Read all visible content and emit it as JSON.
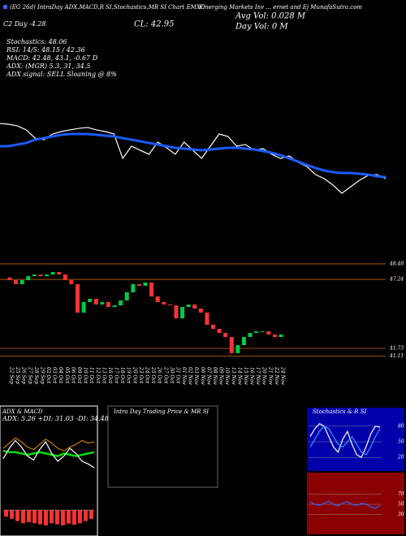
{
  "header": {
    "title_left": "(EG 26d) IntraDay ADX,MACD,R SI,Stochastics,MR SI Chart EMXC",
    "title_right": "Emerging Markets Inv ... ernet and Ej MunafaSutra.com",
    "close": "CL: 42.95",
    "avg_vol": "Avg Vol: 0.028  M",
    "day_vol": "Day Vol: 0  M",
    "day_change": "C2 Day -4.28"
  },
  "info": [
    "Stochastics: 48.06",
    "RSI: 14/5: 48.15 / 42.36",
    "MACD: 42.48, 43.1, -0.67 D",
    "ADX: (MGR) 5.3, 31, 34.5",
    "ADX  signal: SELL Sloaning @ 8%"
  ],
  "chart_data": [
    {
      "type": "line",
      "ylim": [
        41,
        48.5
      ],
      "series": [
        {
          "color": "#ffffff",
          "values": [
            48.33,
            48.25,
            48.08,
            47.67,
            46.83,
            46.67,
            47.25,
            47.5,
            47.67,
            47.83,
            47.92,
            47.67,
            47.5,
            47.25,
            44.75,
            46,
            45.58,
            45.17,
            46.42,
            45.83,
            45.17,
            46.42,
            45.58,
            44.75,
            46,
            47.25,
            47,
            46,
            46.17,
            45.58,
            45.75,
            45.17,
            44.75,
            45,
            44.33,
            43.92,
            43.08,
            42.67,
            42,
            41.17,
            41.83,
            42.5,
            43,
            43.08,
            42.67
          ]
        },
        {
          "color": "#1a5cff",
          "values": [
            46,
            46,
            46.17,
            46.33,
            46.67,
            46.83,
            47,
            47.17,
            47.25,
            47.25,
            47.25,
            47.17,
            47.08,
            47,
            46.83,
            46.67,
            46.5,
            46.33,
            46.17,
            46,
            45.83,
            45.75,
            45.67,
            45.58,
            45.67,
            45.75,
            45.83,
            45.83,
            45.75,
            45.67,
            45.5,
            45.33,
            45.08,
            44.75,
            44.42,
            44.08,
            43.75,
            43.5,
            43.33,
            43.25,
            43.25,
            43.17,
            43.08,
            42.92,
            42.83
          ]
        }
      ]
    },
    {
      "type": "candlestick",
      "up_color": "#00cc44",
      "down_color": "#ff3333",
      "grid": true,
      "grid_color": "#cc6600",
      "ylim": [
        40.5,
        48.8
      ],
      "yticks": [
        48.48,
        47.24,
        41.73,
        41.11
      ],
      "categories": [
        "22 Sep",
        "25 Sep",
        "26 Sep",
        "27 Sep",
        "28 Sep",
        "29 Sep",
        "02 Oct",
        "03 Oct",
        "04 Oct",
        "05 Oct",
        "06 Oct",
        "09 Oct",
        "10 Oct",
        "11 Oct",
        "12 Oct",
        "13 Oct",
        "16 Oct",
        "17 Oct",
        "18 Oct",
        "19 Oct",
        "20 Oct",
        "23 Oct",
        "24 Oct",
        "25 Oct",
        "26 Oct",
        "27 Oct",
        "30 Oct",
        "31 Oct",
        "01 Nov",
        "02 Nov",
        "03 Nov",
        "06 Nov",
        "07 Nov",
        "08 Nov",
        "09 Nov",
        "10 Nov",
        "13 Nov",
        "14 Nov",
        "15 Nov",
        "16 Nov",
        "17 Nov",
        "20 Nov",
        "21 Nov",
        "22 Nov",
        "24 Nov"
      ],
      "open": [
        47.4,
        47.18,
        46.86,
        47.18,
        47.5,
        47.63,
        47.5,
        47.63,
        47.83,
        47.63,
        47.18,
        46.86,
        44.59,
        45.43,
        45.69,
        45.24,
        45.43,
        45.04,
        45.17,
        45.56,
        46.21,
        46.86,
        46.73,
        46.99,
        45.88,
        45.43,
        45.24,
        45.17,
        44.13,
        45.04,
        45.24,
        44.91,
        44.59,
        43.62,
        43.29,
        42.97,
        42.64,
        41.35,
        41.99,
        42.64,
        42.97,
        43.1,
        43.1,
        42.84,
        42.64
      ],
      "close": [
        47.18,
        46.86,
        47.18,
        47.5,
        47.63,
        47.5,
        47.63,
        47.83,
        47.63,
        47.18,
        46.86,
        44.59,
        45.43,
        45.69,
        45.24,
        45.43,
        45.04,
        45.17,
        45.56,
        46.21,
        46.86,
        46.73,
        46.99,
        45.88,
        45.43,
        45.24,
        45.17,
        44.13,
        45.04,
        45.24,
        44.91,
        44.59,
        43.62,
        43.29,
        42.97,
        42.64,
        41.35,
        41.99,
        42.64,
        42.97,
        43.1,
        43.1,
        42.84,
        42.64,
        42.84
      ]
    },
    {
      "type": "line",
      "title": "ADX  & MACD",
      "subtitle": "ADX: 5.26  +DI: 31.03 -DI: 34.48",
      "ylim": [
        0,
        50
      ],
      "series": [
        {
          "color": "#00dd00",
          "values": [
            28,
            27,
            27,
            26,
            25,
            26,
            27,
            26,
            25,
            24,
            26,
            25,
            24,
            25,
            26,
            27
          ]
        },
        {
          "color": "#cc7a00",
          "values": [
            30,
            34,
            38,
            35,
            31,
            29,
            33,
            37,
            34,
            30,
            28,
            31,
            33,
            36,
            34,
            35
          ]
        },
        {
          "color": "#ffffff",
          "values": [
            22,
            30,
            36,
            31,
            24,
            21,
            29,
            35,
            26,
            20,
            24,
            30,
            26,
            20,
            18,
            15
          ]
        }
      ]
    },
    {
      "type": "bar",
      "ylim": [
        -1,
        0.6
      ],
      "color": "#ff3333",
      "values": [
        -0.3,
        -0.4,
        -0.5,
        -0.6,
        -0.55,
        -0.6,
        -0.65,
        -0.7,
        -0.6,
        -0.65,
        -0.7,
        -0.62,
        -0.67,
        -0.6,
        -0.5,
        -0.4
      ]
    },
    {
      "type": "empty",
      "title": "Intra Day Trading Price  & MR SI"
    },
    {
      "type": "line",
      "title": "Stochastics & R SI",
      "ylim": [
        0,
        100
      ],
      "yticks": [
        20,
        50,
        80
      ],
      "series": [
        {
          "color": "#ffffff",
          "values": [
            60,
            75,
            85,
            80,
            60,
            40,
            30,
            55,
            70,
            45,
            25,
            20,
            40,
            65,
            80,
            78
          ]
        },
        {
          "color": "#3399ff",
          "values": [
            40,
            55,
            70,
            80,
            75,
            60,
            45,
            40,
            50,
            60,
            45,
            30,
            25,
            40,
            60,
            75
          ]
        }
      ]
    },
    {
      "type": "line",
      "ylim": [
        0,
        100
      ],
      "yticks": [
        30,
        50,
        70
      ],
      "series": [
        {
          "color": "#3366ff",
          "values": [
            55,
            50,
            48,
            52,
            56,
            50,
            47,
            53,
            55,
            50,
            48,
            52,
            50,
            45,
            42,
            48
          ]
        }
      ]
    }
  ]
}
